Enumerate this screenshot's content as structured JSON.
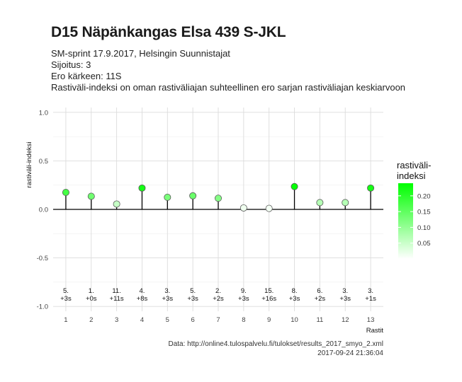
{
  "header": {
    "title": "D15 Näpänkangas Elsa 439 S-JKL",
    "subtitle_lines": [
      "SM-sprint 17.9.2017, Helsingin Suunnistajat",
      "Sijoitus: 3",
      "Ero kärkeen: 11S",
      "Rastiväli-indeksi on oman rastiväliajan suhteellinen ero sarjan rastiväliajan keskiarvoon"
    ]
  },
  "caption": {
    "source": "Data: http://online4.tulospalvelu.fi/tulokset/results_2017_smyo_2.xml",
    "timestamp": "2017-09-24 21:36:04"
  },
  "chart_data": {
    "type": "lollipop",
    "xlabel": "Rastit",
    "ylabel": "rastiväli-indeksi",
    "ylim": [
      -1.05,
      1.05
    ],
    "yticks": [
      1.0,
      0.5,
      0.0,
      -0.5,
      -1.0
    ],
    "ytick_labels": [
      "1.0",
      "0.5",
      "0.0",
      "-0.5",
      "-1.0"
    ],
    "x": [
      1,
      2,
      3,
      4,
      5,
      6,
      7,
      8,
      9,
      10,
      11,
      12,
      13
    ],
    "values": [
      0.175,
      0.135,
      0.055,
      0.22,
      0.125,
      0.14,
      0.115,
      0.015,
      0.01,
      0.235,
      0.07,
      0.07,
      0.22
    ],
    "ranks": [
      "5.",
      "1.",
      "11.",
      "4.",
      "3.",
      "5.",
      "2.",
      "9.",
      "15.",
      "8.",
      "6.",
      "3.",
      "3."
    ],
    "deltas": [
      "+3s",
      "+0s",
      "+11s",
      "+8s",
      "+3s",
      "+3s",
      "+2s",
      "+3s",
      "+16s",
      "+3s",
      "+2s",
      "+3s",
      "+1s"
    ],
    "legend": {
      "title_lines": [
        "rastiväli-",
        "indeksi"
      ],
      "placement": "right",
      "ticks": [
        0.2,
        0.15,
        0.1,
        0.05
      ],
      "tick_labels": [
        "0.20",
        "0.15",
        "0.10",
        "0.05"
      ],
      "range": [
        0.0,
        0.24
      ],
      "color_low": "#ffffff",
      "color_high": "#00ff00"
    },
    "grid": true,
    "colors": {
      "panel": "#ffffff",
      "grid_major": "#dcdcdc",
      "grid_minor": "#efefef",
      "stem": "#000000",
      "point_stroke": "#5a5a5a"
    }
  }
}
